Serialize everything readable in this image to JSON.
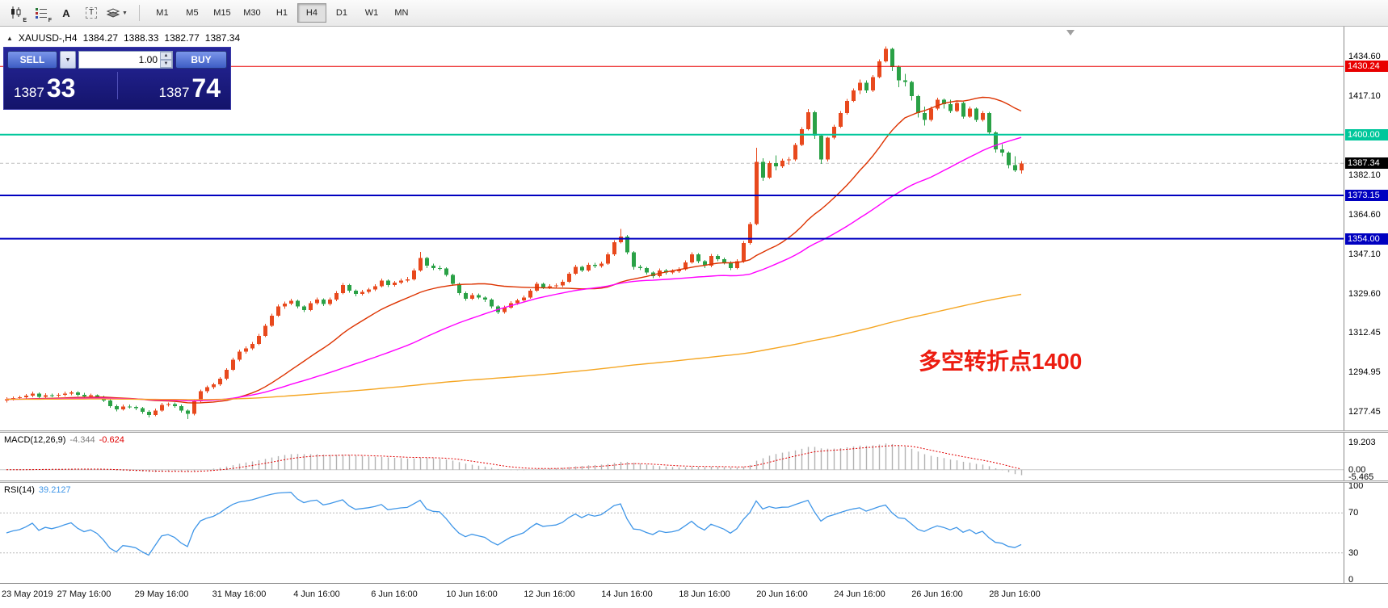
{
  "toolbar": {
    "icons": [
      {
        "name": "candlestick-style-icon",
        "sub": "E"
      },
      {
        "name": "indicators-list-icon",
        "sub": "F"
      },
      {
        "name": "text-label-icon",
        "glyph": "A"
      },
      {
        "name": "text-box-icon",
        "glyph": "T"
      },
      {
        "name": "object-layers-icon",
        "sub": ""
      }
    ],
    "timeframes": [
      "M1",
      "M5",
      "M15",
      "M30",
      "H1",
      "H4",
      "D1",
      "W1",
      "MN"
    ],
    "active_timeframe": "H4"
  },
  "chart_header": {
    "collapse_icon": "▲",
    "symbol": "XAUUSD-,H4",
    "open": "1384.27",
    "high": "1388.33",
    "low": "1382.77",
    "close": "1387.34"
  },
  "quote_panel": {
    "sell_label": "SELL",
    "buy_label": "BUY",
    "volume": "1.00",
    "sell_price_major": "1387",
    "sell_price_minor": "33",
    "buy_price_major": "1387",
    "buy_price_minor": "74"
  },
  "annotation": {
    "text": "多空转折点1400",
    "color": "#ec1c10"
  },
  "chart_data": {
    "type": "candlestick",
    "symbol": "XAUUSD-",
    "timeframe": "H4",
    "up_color": "#e8491d",
    "down_color": "#2aa146",
    "ylim": [
      1271.0,
      1447.8
    ],
    "price_ticks": [
      1434.6,
      1417.1,
      1382.1,
      1364.6,
      1347.1,
      1329.6,
      1312.45,
      1294.95,
      1277.45
    ],
    "price_badges": [
      {
        "value": 1430.24,
        "bg": "#e80000"
      },
      {
        "value": 1400.0,
        "bg": "#00c79b"
      },
      {
        "value": 1387.34,
        "bg": "#000000"
      },
      {
        "value": 1373.15,
        "bg": "#0000c0"
      },
      {
        "value": 1354.0,
        "bg": "#0000c0"
      }
    ],
    "hlines": [
      {
        "price": 1430.24,
        "color": "#e80000",
        "width": 1
      },
      {
        "price": 1400.0,
        "color": "#00c79b",
        "width": 2
      },
      {
        "price": 1373.15,
        "color": "#0000c0",
        "width": 2
      },
      {
        "price": 1354.0,
        "color": "#0000c0",
        "width": 2
      }
    ],
    "bid_line": {
      "price": 1387.34,
      "color": "#c0c0c0"
    },
    "moving_averages": [
      {
        "period": 24,
        "color": "#dd3300"
      },
      {
        "period": 48,
        "color": "#ff00ff"
      },
      {
        "period": 200,
        "color": "#f5a623"
      }
    ],
    "time_labels": [
      {
        "bar": 0,
        "label": "23 May 2019"
      },
      {
        "bar": 12,
        "label": "27 May 16:00"
      },
      {
        "bar": 24,
        "label": "29 May 16:00"
      },
      {
        "bar": 36,
        "label": "31 May 16:00"
      },
      {
        "bar": 48,
        "label": "4 Jun 16:00"
      },
      {
        "bar": 60,
        "label": "6 Jun 16:00"
      },
      {
        "bar": 72,
        "label": "10 Jun 16:00"
      },
      {
        "bar": 84,
        "label": "12 Jun 16:00"
      },
      {
        "bar": 96,
        "label": "14 Jun 16:00"
      },
      {
        "bar": 108,
        "label": "18 Jun 16:00"
      },
      {
        "bar": 120,
        "label": "20 Jun 16:00"
      },
      {
        "bar": 132,
        "label": "24 Jun 16:00"
      },
      {
        "bar": 144,
        "label": "26 Jun 16:00"
      },
      {
        "bar": 156,
        "label": "28 Jun 16:00"
      }
    ],
    "ohlc": [
      [
        1282.5,
        1283.8,
        1281.6,
        1283.0
      ],
      [
        1283.0,
        1284.2,
        1282.4,
        1283.5
      ],
      [
        1283.5,
        1284.6,
        1282.8,
        1283.8
      ],
      [
        1283.8,
        1285.3,
        1283.2,
        1284.5
      ],
      [
        1284.5,
        1286.3,
        1283.9,
        1285.5
      ],
      [
        1285.5,
        1286.1,
        1283.4,
        1284.0
      ],
      [
        1284.0,
        1285.6,
        1283.3,
        1284.8
      ],
      [
        1284.8,
        1285.5,
        1283.8,
        1284.5
      ],
      [
        1284.5,
        1285.7,
        1283.9,
        1284.9
      ],
      [
        1284.9,
        1286.3,
        1284.2,
        1285.5
      ],
      [
        1285.5,
        1286.8,
        1284.8,
        1286.0
      ],
      [
        1286.0,
        1286.6,
        1284.3,
        1285.0
      ],
      [
        1285.0,
        1285.8,
        1283.6,
        1284.3
      ],
      [
        1284.3,
        1285.4,
        1283.6,
        1284.7
      ],
      [
        1284.7,
        1285.2,
        1283.2,
        1284.0
      ],
      [
        1284.0,
        1284.5,
        1281.7,
        1282.5
      ],
      [
        1282.5,
        1283.0,
        1279.2,
        1280.0
      ],
      [
        1280.0,
        1280.6,
        1277.6,
        1278.5
      ],
      [
        1278.5,
        1280.6,
        1277.9,
        1279.8
      ],
      [
        1279.8,
        1280.7,
        1278.8,
        1279.5
      ],
      [
        1279.5,
        1280.1,
        1278.1,
        1279.0
      ],
      [
        1279.0,
        1279.5,
        1276.6,
        1277.5
      ],
      [
        1277.5,
        1278.1,
        1275.0,
        1276.0
      ],
      [
        1276.0,
        1278.8,
        1275.4,
        1278.0
      ],
      [
        1278.0,
        1281.3,
        1277.4,
        1280.5
      ],
      [
        1280.5,
        1281.6,
        1279.7,
        1280.9
      ],
      [
        1280.9,
        1281.5,
        1279.2,
        1280.0
      ],
      [
        1280.0,
        1280.6,
        1277.1,
        1278.0
      ],
      [
        1278.0,
        1278.6,
        1274.2,
        1276.5
      ],
      [
        1276.5,
        1282.8,
        1275.9,
        1282.0
      ],
      [
        1282.0,
        1287.3,
        1281.4,
        1286.5
      ],
      [
        1286.5,
        1289.1,
        1285.7,
        1288.3
      ],
      [
        1288.3,
        1290.3,
        1287.5,
        1289.5
      ],
      [
        1289.5,
        1292.8,
        1288.8,
        1292.0
      ],
      [
        1292.0,
        1296.8,
        1291.4,
        1296.0
      ],
      [
        1296.0,
        1301.3,
        1295.4,
        1300.5
      ],
      [
        1300.5,
        1304.9,
        1299.8,
        1304.0
      ],
      [
        1304.0,
        1306.3,
        1303.2,
        1305.5
      ],
      [
        1305.5,
        1308.3,
        1304.7,
        1307.5
      ],
      [
        1307.5,
        1311.9,
        1306.9,
        1311.0
      ],
      [
        1311.0,
        1316.3,
        1310.4,
        1315.5
      ],
      [
        1315.5,
        1320.8,
        1314.9,
        1320.0
      ],
      [
        1320.0,
        1324.9,
        1319.4,
        1324.0
      ],
      [
        1324.0,
        1326.2,
        1322.9,
        1325.3
      ],
      [
        1325.3,
        1327.4,
        1324.5,
        1326.5
      ],
      [
        1326.5,
        1327.1,
        1323.2,
        1324.0
      ],
      [
        1324.0,
        1324.6,
        1321.6,
        1322.5
      ],
      [
        1322.5,
        1326.3,
        1321.9,
        1325.5
      ],
      [
        1325.5,
        1328.0,
        1324.7,
        1327.0
      ],
      [
        1327.0,
        1327.6,
        1324.3,
        1325.1
      ],
      [
        1325.1,
        1327.9,
        1324.4,
        1327.0
      ],
      [
        1327.0,
        1330.8,
        1326.4,
        1330.0
      ],
      [
        1330.0,
        1334.4,
        1329.4,
        1333.5
      ],
      [
        1333.5,
        1334.1,
        1330.2,
        1331.0
      ],
      [
        1331.0,
        1331.6,
        1328.6,
        1329.5
      ],
      [
        1329.5,
        1331.3,
        1328.8,
        1330.5
      ],
      [
        1330.5,
        1332.3,
        1329.8,
        1331.5
      ],
      [
        1331.5,
        1333.9,
        1330.9,
        1333.0
      ],
      [
        1333.0,
        1336.3,
        1332.4,
        1335.5
      ],
      [
        1335.5,
        1336.1,
        1332.7,
        1333.5
      ],
      [
        1333.5,
        1335.3,
        1332.8,
        1334.5
      ],
      [
        1334.5,
        1336.3,
        1333.8,
        1335.5
      ],
      [
        1335.5,
        1337.0,
        1334.8,
        1336.0
      ],
      [
        1336.0,
        1340.9,
        1335.4,
        1340.0
      ],
      [
        1340.0,
        1348.1,
        1339.4,
        1345.5
      ],
      [
        1345.5,
        1346.1,
        1341.1,
        1342.0
      ],
      [
        1342.0,
        1342.9,
        1340.1,
        1341.0
      ],
      [
        1341.0,
        1342.0,
        1340.0,
        1340.8
      ],
      [
        1340.8,
        1341.4,
        1337.2,
        1338.0
      ],
      [
        1338.0,
        1338.6,
        1333.1,
        1334.0
      ],
      [
        1334.0,
        1334.6,
        1329.1,
        1330.0
      ],
      [
        1330.0,
        1330.6,
        1326.6,
        1327.5
      ],
      [
        1327.5,
        1330.0,
        1326.9,
        1329.0
      ],
      [
        1329.0,
        1329.8,
        1327.2,
        1328.0
      ],
      [
        1328.0,
        1328.6,
        1326.1,
        1327.0
      ],
      [
        1327.0,
        1327.6,
        1323.1,
        1324.0
      ],
      [
        1324.0,
        1324.6,
        1320.6,
        1321.5
      ],
      [
        1321.5,
        1324.4,
        1320.9,
        1323.5
      ],
      [
        1323.5,
        1326.3,
        1322.9,
        1325.5
      ],
      [
        1325.5,
        1327.5,
        1324.8,
        1326.7
      ],
      [
        1326.7,
        1328.8,
        1326.0,
        1328.0
      ],
      [
        1328.0,
        1331.8,
        1327.4,
        1331.0
      ],
      [
        1331.0,
        1334.9,
        1330.4,
        1334.0
      ],
      [
        1334.0,
        1334.6,
        1331.7,
        1332.5
      ],
      [
        1332.5,
        1333.9,
        1331.8,
        1333.0
      ],
      [
        1333.0,
        1334.2,
        1332.3,
        1333.4
      ],
      [
        1333.4,
        1335.9,
        1332.7,
        1335.0
      ],
      [
        1335.0,
        1339.3,
        1334.4,
        1338.5
      ],
      [
        1338.5,
        1342.4,
        1337.9,
        1341.5
      ],
      [
        1341.5,
        1342.1,
        1339.2,
        1340.0
      ],
      [
        1340.0,
        1343.4,
        1339.4,
        1342.5
      ],
      [
        1342.5,
        1343.3,
        1341.1,
        1341.9
      ],
      [
        1341.9,
        1343.9,
        1341.2,
        1343.0
      ],
      [
        1343.0,
        1347.9,
        1342.4,
        1347.0
      ],
      [
        1347.0,
        1353.4,
        1346.4,
        1352.5
      ],
      [
        1352.5,
        1358.3,
        1351.9,
        1355.0
      ],
      [
        1355.0,
        1355.6,
        1347.1,
        1348.0
      ],
      [
        1348.0,
        1348.6,
        1340.3,
        1341.5
      ],
      [
        1341.5,
        1342.4,
        1340.2,
        1341.0
      ],
      [
        1341.0,
        1341.6,
        1338.1,
        1339.0
      ],
      [
        1339.0,
        1339.6,
        1336.6,
        1337.5
      ],
      [
        1337.5,
        1340.9,
        1336.9,
        1340.0
      ],
      [
        1340.0,
        1340.6,
        1338.1,
        1339.0
      ],
      [
        1339.0,
        1340.4,
        1338.3,
        1339.5
      ],
      [
        1339.5,
        1341.4,
        1338.8,
        1340.5
      ],
      [
        1340.5,
        1344.4,
        1339.9,
        1343.5
      ],
      [
        1343.5,
        1347.9,
        1342.9,
        1347.0
      ],
      [
        1347.0,
        1347.6,
        1343.1,
        1344.0
      ],
      [
        1344.0,
        1344.6,
        1341.1,
        1342.0
      ],
      [
        1342.0,
        1347.3,
        1341.4,
        1346.4
      ],
      [
        1346.4,
        1347.0,
        1344.1,
        1345.0
      ],
      [
        1345.0,
        1345.6,
        1342.6,
        1343.5
      ],
      [
        1343.5,
        1344.1,
        1340.1,
        1341.0
      ],
      [
        1341.0,
        1344.9,
        1340.4,
        1344.0
      ],
      [
        1344.0,
        1352.9,
        1343.4,
        1352.0
      ],
      [
        1352.0,
        1361.3,
        1351.4,
        1360.5
      ],
      [
        1360.5,
        1394.3,
        1359.9,
        1388.0
      ],
      [
        1388.0,
        1389.6,
        1379.6,
        1381.0
      ],
      [
        1381.0,
        1388.4,
        1380.4,
        1387.5
      ],
      [
        1387.5,
        1390.9,
        1384.2,
        1386.0
      ],
      [
        1386.0,
        1389.4,
        1385.3,
        1388.6
      ],
      [
        1388.6,
        1390.2,
        1386.7,
        1389.0
      ],
      [
        1389.0,
        1396.4,
        1388.4,
        1395.5
      ],
      [
        1395.5,
        1403.4,
        1394.9,
        1402.5
      ],
      [
        1402.5,
        1411.4,
        1401.9,
        1410.0
      ],
      [
        1410.0,
        1410.6,
        1398.1,
        1399.5
      ],
      [
        1399.5,
        1400.1,
        1387.1,
        1389.0
      ],
      [
        1389.0,
        1399.0,
        1388.1,
        1398.7
      ],
      [
        1398.7,
        1404.4,
        1398.0,
        1403.5
      ],
      [
        1403.5,
        1410.4,
        1402.9,
        1409.5
      ],
      [
        1409.5,
        1415.9,
        1408.9,
        1415.0
      ],
      [
        1415.0,
        1420.4,
        1414.4,
        1419.5
      ],
      [
        1419.5,
        1424.4,
        1417.9,
        1423.0
      ],
      [
        1423.0,
        1424.1,
        1418.6,
        1419.5
      ],
      [
        1419.5,
        1426.4,
        1418.9,
        1425.5
      ],
      [
        1425.5,
        1433.4,
        1424.9,
        1432.5
      ],
      [
        1432.5,
        1439.1,
        1431.9,
        1438.0
      ],
      [
        1438.0,
        1438.6,
        1428.1,
        1430.0
      ],
      [
        1430.0,
        1430.6,
        1421.1,
        1424.0
      ],
      [
        1424.0,
        1426.9,
        1421.4,
        1423.3
      ],
      [
        1423.3,
        1423.9,
        1415.1,
        1417.0
      ],
      [
        1417.0,
        1417.6,
        1407.6,
        1409.5
      ],
      [
        1409.5,
        1412.4,
        1404.1,
        1406.5
      ],
      [
        1406.5,
        1412.4,
        1405.9,
        1411.5
      ],
      [
        1411.5,
        1416.4,
        1410.9,
        1415.5
      ],
      [
        1415.5,
        1416.1,
        1411.6,
        1413.5
      ],
      [
        1413.5,
        1415.4,
        1409.6,
        1410.5
      ],
      [
        1410.5,
        1414.9,
        1409.9,
        1414.0
      ],
      [
        1414.0,
        1414.6,
        1407.1,
        1408.0
      ],
      [
        1408.0,
        1412.4,
        1407.4,
        1411.5
      ],
      [
        1411.5,
        1412.1,
        1405.6,
        1406.5
      ],
      [
        1406.5,
        1410.4,
        1405.9,
        1409.5
      ],
      [
        1409.5,
        1410.1,
        1400.1,
        1401.0
      ],
      [
        1401.0,
        1401.6,
        1392.1,
        1393.5
      ],
      [
        1393.5,
        1395.9,
        1390.4,
        1392.0
      ],
      [
        1392.0,
        1392.6,
        1385.1,
        1386.5
      ],
      [
        1386.5,
        1390.4,
        1383.6,
        1384.3
      ],
      [
        1384.27,
        1388.33,
        1382.77,
        1387.34
      ]
    ],
    "macd": {
      "label": "MACD(12,26,9)",
      "main_value": "-4.344",
      "signal_value": "-0.624",
      "fast": 12,
      "slow": 26,
      "signal": 9,
      "histogram_color": "#b2b2b2",
      "signal_color": "#e00000",
      "axis_labels": [
        {
          "value": 19.203,
          "text": "19.203"
        },
        {
          "value": 0,
          "text": "0.00"
        },
        {
          "value": -5.465,
          "text": "-5.465"
        }
      ],
      "ylim": [
        -7.5,
        26
      ]
    },
    "rsi": {
      "label": "RSI(14)",
      "value": "39.2127",
      "period": 14,
      "line_color": "#3f96e8",
      "levels": [
        {
          "value": 100,
          "text": "100"
        },
        {
          "value": 70,
          "text": "70"
        },
        {
          "value": 30,
          "text": "30"
        },
        {
          "value": 0,
          "text": "0"
        }
      ],
      "dashed_levels": [
        70,
        30
      ],
      "ylim": [
        0,
        100
      ]
    }
  }
}
